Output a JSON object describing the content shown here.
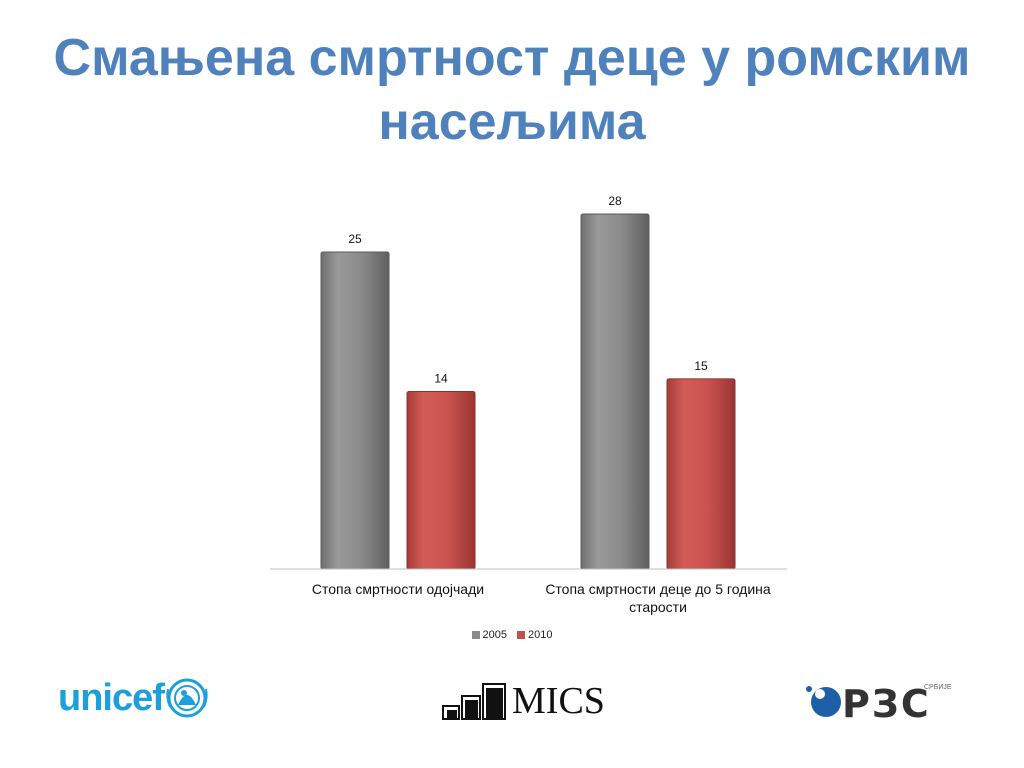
{
  "slide": {
    "title": "Смањена смртност деце у ромским насељима"
  },
  "chart_data": {
    "type": "bar",
    "title": "",
    "xlabel": "",
    "ylabel": "",
    "ylim": [
      0,
      30
    ],
    "grid": false,
    "legend_position": "bottom",
    "categories": [
      "Стопа смртности одојчади",
      "Стопа смртности деце до 5 година старости"
    ],
    "series": [
      {
        "name": "2005",
        "values": [
          25,
          28
        ],
        "color": "#8c8c8c"
      },
      {
        "name": "2010",
        "values": [
          14,
          15
        ],
        "color": "#c0504d"
      }
    ]
  },
  "logos": {
    "unicef": {
      "text": "unicef",
      "color": "#1ca0dc"
    },
    "mics": {
      "text": "MICS"
    },
    "rzs": {
      "text": "РЗС",
      "subtext": "СРБИЈЕ",
      "color": "#1f5fa8"
    }
  }
}
